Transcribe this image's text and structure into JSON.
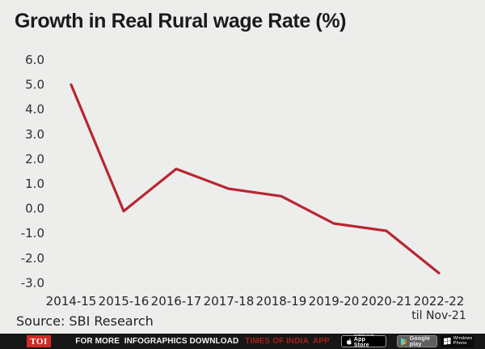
{
  "title": "Growth in Real Rural wage Rate (%)",
  "chart_data": {
    "type": "line",
    "title": "Growth in Real Rural wage Rate (%)",
    "categories": [
      "2014-15",
      "2015-16",
      "2016-17",
      "2017-18",
      "2018-19",
      "2019-20",
      "2020-21",
      "2022-22"
    ],
    "values": [
      5.0,
      -0.1,
      1.6,
      0.8,
      0.5,
      -0.6,
      -0.9,
      -2.6
    ],
    "x_sub_label": "til Nov-21",
    "x_sub_label_index": 7,
    "y_ticks": [
      "6.0",
      "5.0",
      "4.0",
      "3.0",
      "2.0",
      "1.0",
      "0.0",
      "-1.0",
      "-2.0",
      "-3.0"
    ],
    "ylim": [
      -3.0,
      6.0
    ],
    "xlabel": "",
    "ylabel": "",
    "grid": false,
    "legend": "none",
    "line_color": "#b82631"
  },
  "source": {
    "text": "Source: SBI Research"
  },
  "footer": {
    "toi_logo": "TOI",
    "promo_white": "FOR MORE  INFOGRAPHICS DOWNLOAD",
    "promo_red": "TIMES OF INDIA  APP",
    "badges": {
      "app_store": {
        "line1": "Available on the",
        "line2": "App Store"
      },
      "google_play": {
        "line1": "",
        "line2": "Google play"
      },
      "windows": {
        "line1": "Windows",
        "line2": "Phone"
      }
    }
  },
  "colors": {
    "background": "#ededec",
    "line": "#b82631",
    "toi_red": "#d02c26",
    "promo_red": "#a42318",
    "footer_bg": "#171717"
  }
}
